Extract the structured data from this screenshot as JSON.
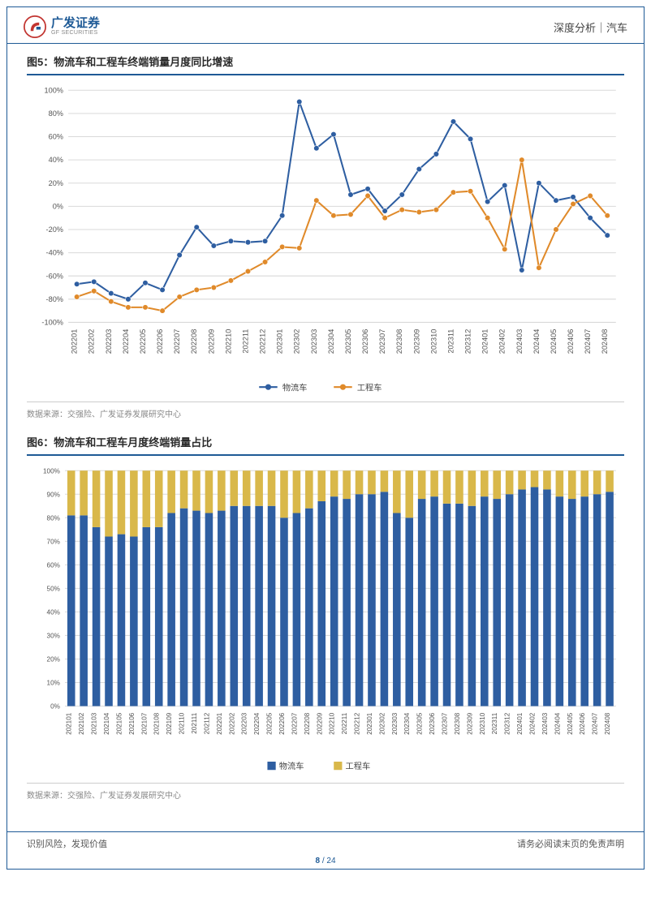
{
  "header": {
    "logo_cn": "广发证券",
    "logo_en": "GF SECURITIES",
    "breadcrumb": "深度分析｜汽车"
  },
  "chart5": {
    "title": "图5：物流车和工程车终端销量月度同比增速",
    "type": "line",
    "ylim": [
      -100,
      100
    ],
    "ytick_step": 20,
    "yticks": [
      "-100%",
      "-80%",
      "-60%",
      "-40%",
      "-20%",
      "0%",
      "20%",
      "40%",
      "60%",
      "80%",
      "100%"
    ],
    "categories": [
      "202201",
      "202202",
      "202203",
      "202204",
      "202205",
      "202206",
      "202207",
      "202208",
      "202209",
      "202210",
      "202211",
      "202212",
      "202301",
      "202302",
      "202303",
      "202304",
      "202305",
      "202306",
      "202307",
      "202308",
      "202309",
      "202310",
      "202311",
      "202312",
      "202401",
      "202402",
      "202403",
      "202404",
      "202405",
      "202406",
      "202407",
      "202408"
    ],
    "series": [
      {
        "name": "物流车",
        "color": "#2e5ea1",
        "marker": "circle",
        "values": [
          -67,
          -65,
          -75,
          -80,
          -66,
          -72,
          -42,
          -18,
          -34,
          -30,
          -31,
          -30,
          -8,
          90,
          50,
          62,
          10,
          15,
          -4,
          10,
          32,
          45,
          73,
          58,
          4,
          18,
          -55,
          20,
          5,
          8,
          -10,
          -25
        ]
      },
      {
        "name": "工程车",
        "color": "#e08a2a",
        "marker": "circle",
        "values": [
          -78,
          -73,
          -82,
          -87,
          -87,
          -90,
          -78,
          -72,
          -70,
          -64,
          -56,
          -48,
          -35,
          -36,
          5,
          -8,
          -7,
          9,
          -10,
          -3,
          -5,
          -3,
          12,
          13,
          -10,
          -37,
          40,
          -53,
          -20,
          2,
          9,
          -8
        ]
      }
    ],
    "legend": [
      "物流车",
      "工程车"
    ],
    "background_color": "#ffffff",
    "grid_color": "#d9d9d9",
    "axis_color": "#666666",
    "tick_fontsize": 9,
    "source": "数据来源：交强险、广发证券发展研究中心"
  },
  "chart6": {
    "title": "图6：物流车和工程车月度终端销量占比",
    "type": "stacked_bar",
    "ylim": [
      0,
      100
    ],
    "ytick_step": 10,
    "yticks": [
      "0%",
      "10%",
      "20%",
      "30%",
      "40%",
      "50%",
      "60%",
      "70%",
      "80%",
      "90%",
      "100%"
    ],
    "categories": [
      "202101",
      "202102",
      "202103",
      "202104",
      "202105",
      "202106",
      "202107",
      "202108",
      "202109",
      "202110",
      "202111",
      "202112",
      "202201",
      "202202",
      "202203",
      "202204",
      "202205",
      "202206",
      "202207",
      "202208",
      "202209",
      "202210",
      "202211",
      "202212",
      "202301",
      "202302",
      "202303",
      "202304",
      "202305",
      "202306",
      "202307",
      "202308",
      "202309",
      "202310",
      "202311",
      "202312",
      "202401",
      "202402",
      "202403",
      "202404",
      "202405",
      "202406",
      "202407",
      "202408"
    ],
    "series": [
      {
        "name": "物流车",
        "color": "#2e5ea1",
        "values": [
          81,
          81,
          76,
          72,
          73,
          72,
          76,
          76,
          82,
          84,
          83,
          82,
          83,
          85,
          85,
          85,
          85,
          80,
          82,
          84,
          87,
          89,
          88,
          90,
          90,
          91,
          82,
          80,
          88,
          89,
          86,
          86,
          85,
          89,
          88,
          90,
          92,
          93,
          92,
          89,
          88,
          89,
          90,
          91
        ]
      },
      {
        "name": "工程车",
        "color": "#d9b84a",
        "values": [
          19,
          19,
          24,
          28,
          27,
          28,
          24,
          24,
          18,
          16,
          17,
          18,
          17,
          15,
          15,
          15,
          15,
          20,
          18,
          16,
          13,
          11,
          12,
          10,
          10,
          9,
          18,
          20,
          12,
          11,
          14,
          14,
          15,
          11,
          12,
          10,
          8,
          7,
          8,
          11,
          12,
          11,
          10,
          9
        ]
      }
    ],
    "legend": [
      "物流车",
      "工程车"
    ],
    "background_color": "#ffffff",
    "grid_color": "#d9d9d9",
    "axis_color": "#666666",
    "tick_fontsize": 8,
    "bar_width": 0.62,
    "source": "数据来源：交强险、广发证券发展研究中心"
  },
  "footer": {
    "left": "识别风险，发现价值",
    "right": "请务必阅读末页的免责声明",
    "page_current": "8",
    "page_total": "24"
  }
}
